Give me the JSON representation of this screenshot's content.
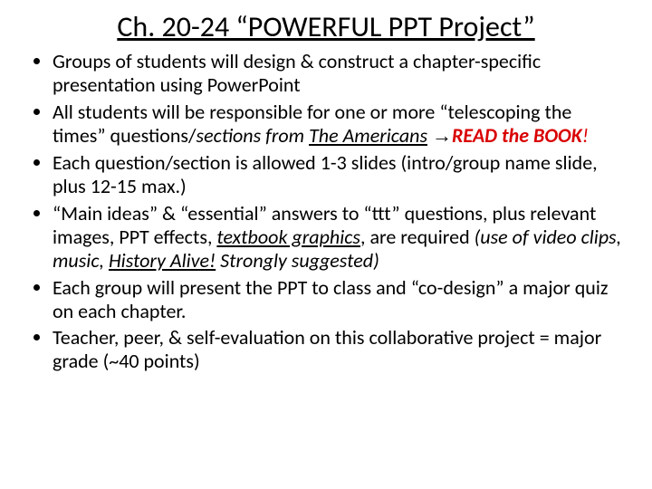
{
  "title": "Ch. 20-24 “POWERFUL PPT Project”",
  "bullets": {
    "b1": "Groups of students will design & construct a chapter-specific presentation using PowerPoint",
    "b2_part1": "All students will be responsible for one or more “telescoping the times” questions/",
    "b2_part2": "sections from  ",
    "b2_part3": "The Americans",
    "b2_arrow": "→",
    "b2_read": "READ the BOOK",
    "b2_excl": "!",
    "b3": "Each question/section is allowed 1-3 slides (intro/group name slide, plus 12-15 max.)",
    "b4_part1": "“Main ideas” & “essential” answers to “ttt” questions, plus relevant images, PPT effects, ",
    "b4_part2": "textbook graphics",
    "b4_part3": ", are required ",
    "b4_part4": "(use of video clips, music, ",
    "b4_part5": "History Alive!",
    "b4_part6": " Strongly suggested)",
    "b5": "Each group will present the PPT to class and “co-design” a major quiz on each chapter.",
    "b6": "Teacher, peer, & self-evaluation on this collaborative project  = major grade (~40 points)"
  },
  "colors": {
    "text": "#000000",
    "accent": "#d90000",
    "background": "#ffffff"
  },
  "typography": {
    "title_fontsize": 32,
    "body_fontsize": 22,
    "font_family": "Calibri"
  }
}
